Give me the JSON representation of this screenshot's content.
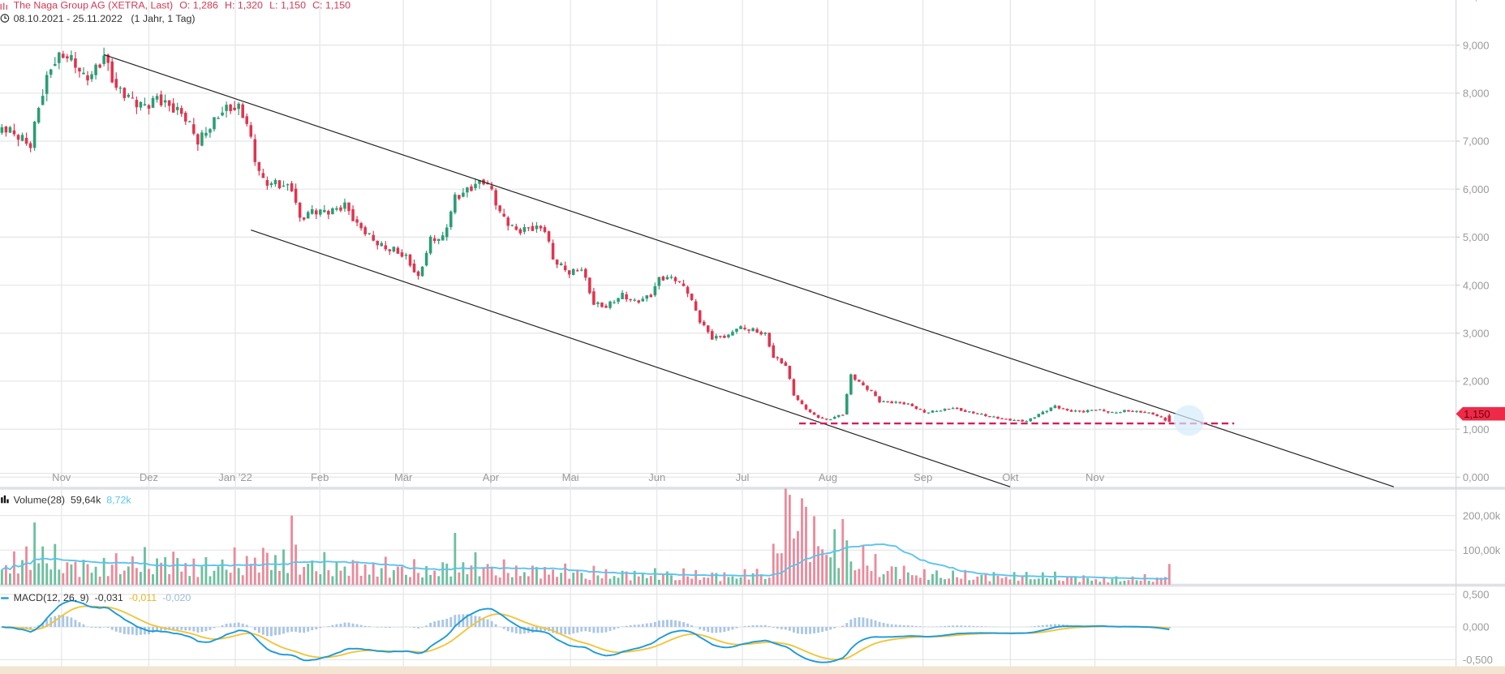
{
  "header": {
    "instrument": "The Naga Group AG (XETRA, Last)",
    "open": "O: 1,286",
    "high": "H: 1,320",
    "low": "L: 1,150",
    "close": "C: 1,150",
    "range": "08.10.2021 - 25.11.2022",
    "period": "(1 Jahr, 1 Tag)"
  },
  "colors": {
    "up": "#2a9d74",
    "down": "#e0344f",
    "header": "#d43a55",
    "volume_ma": "#5bc4ef",
    "macd": "#1b9ad9",
    "signal": "#f2c53d",
    "hist": "#a9c6e6",
    "support": "#d81b60"
  },
  "chart_data": [
    {
      "type": "candlestick",
      "title": "The Naga Group AG (XETRA, Last)",
      "x_unit": "trading day index from 08.10.2021",
      "ylim": [
        0,
        10
      ],
      "y_ticks": [
        "0,000",
        "1,000",
        "2,000",
        "3,000",
        "4,000",
        "5,000",
        "6,000",
        "7,000",
        "8,000",
        "9,000"
      ],
      "x_ticks": [
        "Nov",
        "Dez",
        "Jan '22",
        "Feb",
        "Mär",
        "Apr",
        "Mai",
        "Jun",
        "Jul",
        "Aug",
        "Sep",
        "Okt",
        "Nov"
      ],
      "last_price_label": "1,150",
      "last_candle": {
        "open": 1.286,
        "high": 1.32,
        "low": 1.15,
        "close": 1.15
      },
      "close_keypoints": [
        [
          0,
          7.2
        ],
        [
          5,
          7.1
        ],
        [
          7,
          7.0
        ],
        [
          9,
          7.8
        ],
        [
          12,
          8.5
        ],
        [
          15,
          8.7
        ],
        [
          18,
          8.6
        ],
        [
          20,
          8.4
        ],
        [
          22,
          8.5
        ],
        [
          25,
          8.8
        ],
        [
          28,
          8.0
        ],
        [
          32,
          7.8
        ],
        [
          35,
          7.8
        ],
        [
          38,
          8.0
        ],
        [
          41,
          7.7
        ],
        [
          45,
          7.4
        ],
        [
          48,
          7.0
        ],
        [
          51,
          7.4
        ],
        [
          54,
          7.7
        ],
        [
          58,
          7.6
        ],
        [
          60,
          7.3
        ],
        [
          62,
          6.6
        ],
        [
          64,
          6.2
        ],
        [
          67,
          6.2
        ],
        [
          71,
          6.0
        ],
        [
          73,
          5.3
        ],
        [
          76,
          5.5
        ],
        [
          80,
          5.6
        ],
        [
          84,
          5.7
        ],
        [
          87,
          5.2
        ],
        [
          91,
          4.9
        ],
        [
          94,
          4.8
        ],
        [
          96,
          4.8
        ],
        [
          99,
          4.6
        ],
        [
          102,
          4.1
        ],
        [
          105,
          4.9
        ],
        [
          108,
          5.0
        ],
        [
          111,
          5.9
        ],
        [
          114,
          6.0
        ],
        [
          118,
          6.1
        ],
        [
          120,
          5.9
        ],
        [
          122,
          5.5
        ],
        [
          126,
          5.2
        ],
        [
          129,
          5.2
        ],
        [
          133,
          5.1
        ],
        [
          135,
          4.5
        ],
        [
          139,
          4.3
        ],
        [
          142,
          4.4
        ],
        [
          145,
          3.6
        ],
        [
          148,
          3.5
        ],
        [
          152,
          3.8
        ],
        [
          155,
          3.7
        ],
        [
          159,
          3.8
        ],
        [
          161,
          4.1
        ],
        [
          165,
          4.1
        ],
        [
          168,
          3.9
        ],
        [
          171,
          3.3
        ],
        [
          174,
          2.9
        ],
        [
          178,
          2.9
        ],
        [
          180,
          3.1
        ],
        [
          184,
          3.1
        ],
        [
          187,
          3.0
        ],
        [
          189,
          2.5
        ],
        [
          192,
          2.3
        ],
        [
          194,
          1.7
        ],
        [
          196,
          1.5
        ],
        [
          199,
          1.3
        ],
        [
          202,
          1.2
        ],
        [
          206,
          1.3
        ],
        [
          208,
          2.1
        ],
        [
          211,
          1.9
        ],
        [
          213,
          1.8
        ],
        [
          215,
          1.6
        ],
        [
          219,
          1.55
        ],
        [
          222,
          1.5
        ],
        [
          226,
          1.35
        ],
        [
          229,
          1.4
        ],
        [
          233,
          1.45
        ],
        [
          236,
          1.35
        ],
        [
          240,
          1.3
        ],
        [
          244,
          1.25
        ],
        [
          247,
          1.2
        ],
        [
          251,
          1.15
        ],
        [
          254,
          1.3
        ],
        [
          258,
          1.5
        ],
        [
          261,
          1.4
        ],
        [
          265,
          1.35
        ],
        [
          268,
          1.4
        ],
        [
          272,
          1.35
        ],
        [
          275,
          1.4
        ],
        [
          279,
          1.35
        ],
        [
          282,
          1.3
        ],
        [
          286,
          1.15
        ]
      ],
      "support_level": 1.1,
      "trend_channel": {
        "upper": [
          [
            25,
            8.8
          ],
          [
            341,
            -0.2
          ]
        ],
        "lower": [
          [
            61,
            5.15
          ],
          [
            247,
            -0.2
          ]
        ]
      }
    },
    {
      "type": "bar",
      "title": "Volume(28)",
      "legend_value": "59,64k",
      "legend_ma": "8,72k",
      "y_ticks": [
        "100,00k",
        "200,00k"
      ],
      "volume_keypoints_k": [
        [
          0,
          60
        ],
        [
          10,
          80
        ],
        [
          20,
          50
        ],
        [
          30,
          60
        ],
        [
          40,
          70
        ],
        [
          50,
          50
        ],
        [
          60,
          70
        ],
        [
          70,
          80
        ],
        [
          75,
          60
        ],
        [
          85,
          50
        ],
        [
          95,
          50
        ],
        [
          105,
          40
        ],
        [
          115,
          60
        ],
        [
          125,
          40
        ],
        [
          135,
          40
        ],
        [
          150,
          30
        ],
        [
          165,
          30
        ],
        [
          180,
          25
        ],
        [
          188,
          40
        ],
        [
          192,
          180
        ],
        [
          196,
          200
        ],
        [
          200,
          120
        ],
        [
          205,
          100
        ],
        [
          210,
          80
        ],
        [
          215,
          50
        ],
        [
          225,
          30
        ],
        [
          240,
          25
        ],
        [
          255,
          25
        ],
        [
          270,
          15
        ],
        [
          285,
          20
        ]
      ],
      "volume_spikes_k": [
        [
          8,
          180
        ],
        [
          71,
          200
        ],
        [
          111,
          150
        ],
        [
          193,
          260
        ],
        [
          196,
          250
        ],
        [
          206,
          190
        ],
        [
          286,
          60
        ]
      ],
      "ma_period": 28
    },
    {
      "type": "line",
      "title": "MACD(12, 26, 9)",
      "legend_macd": "-0,031",
      "legend_signal": "-0,011",
      "legend_hist": "-0,020",
      "y_ticks": [
        "0,500",
        "0,000",
        "-0,500"
      ],
      "ylim": [
        -0.6,
        0.6
      ]
    }
  ]
}
